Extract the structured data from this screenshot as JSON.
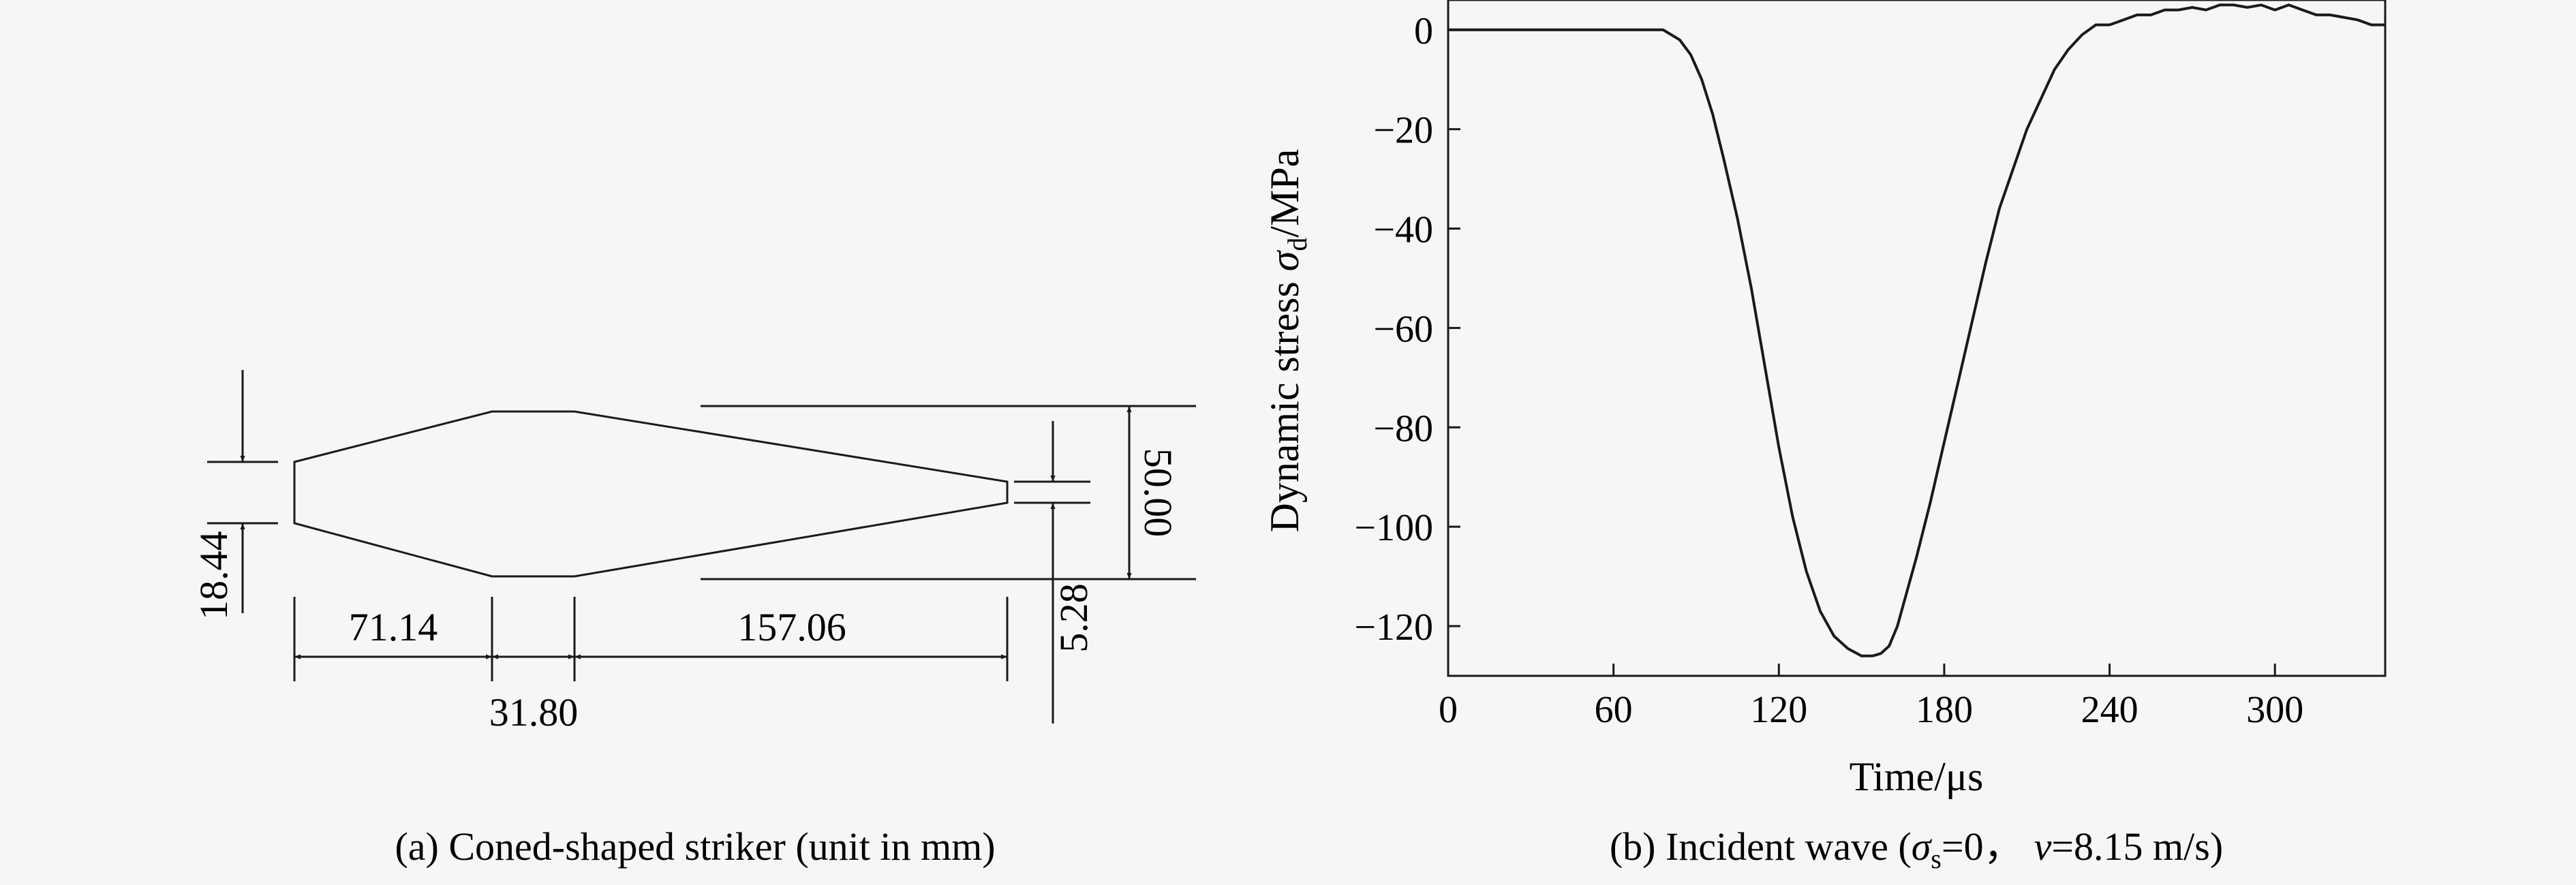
{
  "panel_a": {
    "caption": "(a) Coned-shaped striker (unit in mm)",
    "dimensions": {
      "left_end_diameter": "18.44",
      "cone_length_left": "71.14",
      "cylinder_length": "31.80",
      "cone_length_right": "157.06",
      "max_diameter": "50.00",
      "right_end_diameter": "5.28"
    }
  },
  "panel_b": {
    "caption_prefix": "(b) Incident wave (",
    "caption_sigma": "σ",
    "caption_sigma_sub": "s",
    "caption_mid": "=0，",
    "caption_v": "v",
    "caption_suffix": "=8.15 m/s)"
  },
  "chart_data": {
    "type": "line",
    "title": "",
    "xlabel": "Time/μs",
    "ylabel_prefix": "Dynamic stress ",
    "ylabel_sigma": "σ",
    "ylabel_sub": "d",
    "ylabel_suffix": "/MPa",
    "xlim": [
      0,
      340
    ],
    "ylim": [
      -130,
      6
    ],
    "xticks": [
      "0",
      "60",
      "120",
      "180",
      "240",
      "300"
    ],
    "yticks": [
      "0",
      "−20",
      "−40",
      "−60",
      "−80",
      "−100",
      "−120"
    ],
    "series": [
      {
        "x": [
          0,
          10,
          20,
          30,
          40,
          50,
          60,
          70,
          78,
          84,
          88,
          92,
          96,
          100,
          105,
          110,
          115,
          120,
          125,
          130,
          135,
          140,
          145,
          150,
          154,
          157,
          160,
          163,
          166,
          170,
          175,
          180,
          185,
          190,
          195,
          200,
          205,
          210,
          215,
          220,
          225,
          230,
          235,
          240,
          245,
          250,
          255,
          260,
          265,
          270,
          275,
          280,
          285,
          290,
          295,
          300,
          305,
          310,
          315,
          320,
          325,
          330,
          335,
          340
        ],
        "y": [
          0,
          0,
          0,
          0,
          0,
          0,
          0,
          0,
          0,
          -2,
          -5,
          -10,
          -17,
          -26,
          -38,
          -52,
          -68,
          -84,
          -98,
          -109,
          -117,
          -122,
          -124.5,
          -126,
          -126,
          -125.5,
          -124,
          -120,
          -114,
          -106,
          -95,
          -83,
          -71,
          -59,
          -47,
          -36,
          -28,
          -20,
          -14,
          -8,
          -4,
          -1,
          1,
          1,
          2,
          3,
          3,
          4,
          4,
          4.5,
          4,
          5,
          5,
          4.5,
          5,
          4,
          5,
          4,
          3,
          3,
          2.5,
          2,
          1,
          1
        ]
      }
    ]
  }
}
